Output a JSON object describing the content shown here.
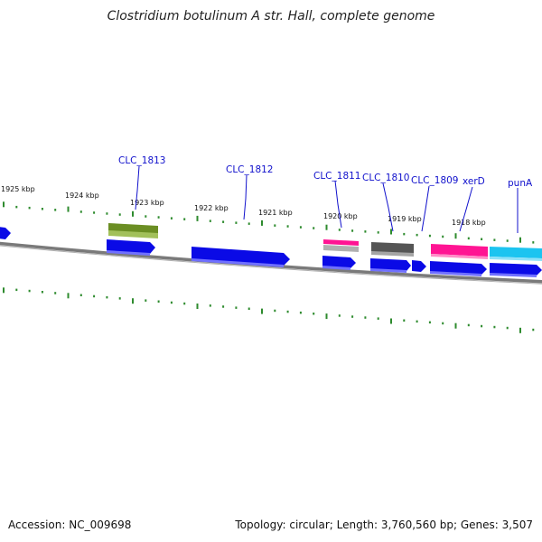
{
  "title": "Clostridium botulinum A str. Hall, complete genome",
  "footer": {
    "accession": "Accession: NC_009698",
    "topology": "Topology: circular; Length: 3,760,560 bp; Genes: 3,507"
  },
  "colors": {
    "backbone": "#7f7f7f",
    "tick": "#2e8b2e",
    "label": "#1010cc",
    "cds_blue": "#0a0ae6",
    "olive": "#6b8e23",
    "pink": "#ff1493",
    "gray": "#555555",
    "cyan": "#1cc4f0"
  },
  "kbp_labels": [
    "1925 kbp",
    "1924 kbp",
    "1923 kbp",
    "1922 kbp",
    "1921 kbp",
    "1920 kbp",
    "1919 kbp",
    "1918 kbp"
  ],
  "gene_labels": [
    "CLC_1813",
    "CLC_1812",
    "CLC_1811",
    "CLC_1810",
    "CLC_1809",
    "xerD",
    "punA"
  ]
}
